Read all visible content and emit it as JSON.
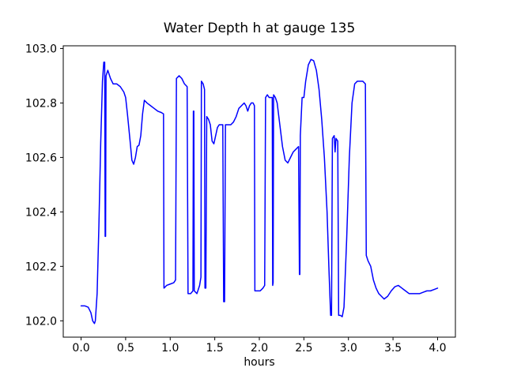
{
  "title": "Water Depth h at gauge 135",
  "chart_data": {
    "type": "line",
    "title": "Water Depth h at gauge 135",
    "xlabel": "hours",
    "ylabel": "",
    "legend": null,
    "grid": false,
    "series_name": "Water depth h",
    "series_color": "#0000ff",
    "axis_color": "#000000",
    "xlim": [
      -0.2,
      4.2
    ],
    "ylim": [
      101.94,
      103.01
    ],
    "xticks": {
      "values": [
        0.0,
        0.5,
        1.0,
        1.5,
        2.0,
        2.5,
        3.0,
        3.5,
        4.0
      ],
      "labels": [
        "0.0",
        "0.5",
        "1.0",
        "1.5",
        "2.0",
        "2.5",
        "3.0",
        "3.5",
        "4.0"
      ]
    },
    "yticks": {
      "values": [
        102.0,
        102.2,
        102.4,
        102.6,
        102.8,
        103.0
      ],
      "labels": [
        "102.0",
        "102.2",
        "102.4",
        "102.6",
        "102.8",
        "103.0"
      ]
    },
    "points": [
      [
        0.0,
        102.055
      ],
      [
        0.04,
        102.055
      ],
      [
        0.08,
        102.05
      ],
      [
        0.11,
        102.03
      ],
      [
        0.13,
        102.0
      ],
      [
        0.15,
        101.99
      ],
      [
        0.16,
        102.0
      ],
      [
        0.18,
        102.1
      ],
      [
        0.2,
        102.35
      ],
      [
        0.22,
        102.65
      ],
      [
        0.24,
        102.88
      ],
      [
        0.255,
        102.95
      ],
      [
        0.265,
        102.95
      ],
      [
        0.27,
        102.31
      ],
      [
        0.275,
        102.31
      ],
      [
        0.28,
        102.9
      ],
      [
        0.3,
        102.92
      ],
      [
        0.33,
        102.89
      ],
      [
        0.36,
        102.87
      ],
      [
        0.4,
        102.87
      ],
      [
        0.44,
        102.86
      ],
      [
        0.48,
        102.84
      ],
      [
        0.5,
        102.82
      ],
      [
        0.52,
        102.76
      ],
      [
        0.55,
        102.66
      ],
      [
        0.57,
        102.59
      ],
      [
        0.59,
        102.575
      ],
      [
        0.61,
        102.6
      ],
      [
        0.63,
        102.64
      ],
      [
        0.65,
        102.645
      ],
      [
        0.67,
        102.68
      ],
      [
        0.69,
        102.76
      ],
      [
        0.71,
        102.81
      ],
      [
        0.74,
        102.8
      ],
      [
        0.78,
        102.79
      ],
      [
        0.82,
        102.78
      ],
      [
        0.86,
        102.77
      ],
      [
        0.9,
        102.765
      ],
      [
        0.925,
        102.76
      ],
      [
        0.93,
        102.12
      ],
      [
        0.96,
        102.13
      ],
      [
        1.0,
        102.135
      ],
      [
        1.04,
        102.14
      ],
      [
        1.06,
        102.15
      ],
      [
        1.07,
        102.89
      ],
      [
        1.1,
        102.9
      ],
      [
        1.13,
        102.89
      ],
      [
        1.16,
        102.87
      ],
      [
        1.19,
        102.86
      ],
      [
        1.2,
        102.1
      ],
      [
        1.23,
        102.1
      ],
      [
        1.255,
        102.11
      ],
      [
        1.26,
        102.77
      ],
      [
        1.265,
        102.77
      ],
      [
        1.27,
        102.11
      ],
      [
        1.3,
        102.1
      ],
      [
        1.33,
        102.13
      ],
      [
        1.345,
        102.16
      ],
      [
        1.35,
        102.88
      ],
      [
        1.37,
        102.87
      ],
      [
        1.385,
        102.85
      ],
      [
        1.39,
        102.12
      ],
      [
        1.4,
        102.12
      ],
      [
        1.41,
        102.75
      ],
      [
        1.43,
        102.74
      ],
      [
        1.45,
        102.72
      ],
      [
        1.47,
        102.66
      ],
      [
        1.49,
        102.65
      ],
      [
        1.51,
        102.68
      ],
      [
        1.53,
        102.71
      ],
      [
        1.55,
        102.72
      ],
      [
        1.57,
        102.72
      ],
      [
        1.59,
        102.72
      ],
      [
        1.6,
        102.07
      ],
      [
        1.61,
        102.07
      ],
      [
        1.62,
        102.72
      ],
      [
        1.65,
        102.72
      ],
      [
        1.68,
        102.72
      ],
      [
        1.71,
        102.73
      ],
      [
        1.74,
        102.75
      ],
      [
        1.77,
        102.78
      ],
      [
        1.8,
        102.79
      ],
      [
        1.83,
        102.8
      ],
      [
        1.85,
        102.79
      ],
      [
        1.87,
        102.77
      ],
      [
        1.89,
        102.79
      ],
      [
        1.91,
        102.8
      ],
      [
        1.93,
        102.8
      ],
      [
        1.945,
        102.79
      ],
      [
        1.95,
        102.11
      ],
      [
        1.98,
        102.11
      ],
      [
        2.01,
        102.11
      ],
      [
        2.04,
        102.12
      ],
      [
        2.06,
        102.13
      ],
      [
        2.07,
        102.82
      ],
      [
        2.09,
        102.83
      ],
      [
        2.11,
        102.82
      ],
      [
        2.13,
        102.82
      ],
      [
        2.145,
        102.82
      ],
      [
        2.15,
        102.13
      ],
      [
        2.155,
        102.14
      ],
      [
        2.16,
        102.83
      ],
      [
        2.18,
        102.82
      ],
      [
        2.2,
        102.8
      ],
      [
        2.23,
        102.72
      ],
      [
        2.26,
        102.64
      ],
      [
        2.29,
        102.59
      ],
      [
        2.32,
        102.58
      ],
      [
        2.35,
        102.6
      ],
      [
        2.38,
        102.62
      ],
      [
        2.41,
        102.63
      ],
      [
        2.44,
        102.64
      ],
      [
        2.45,
        102.17
      ],
      [
        2.455,
        102.17
      ],
      [
        2.46,
        102.68
      ],
      [
        2.48,
        102.82
      ],
      [
        2.5,
        102.82
      ],
      [
        2.52,
        102.88
      ],
      [
        2.55,
        102.94
      ],
      [
        2.58,
        102.96
      ],
      [
        2.61,
        102.955
      ],
      [
        2.64,
        102.92
      ],
      [
        2.67,
        102.85
      ],
      [
        2.7,
        102.74
      ],
      [
        2.73,
        102.6
      ],
      [
        2.76,
        102.4
      ],
      [
        2.78,
        102.2
      ],
      [
        2.8,
        102.02
      ],
      [
        2.81,
        102.02
      ],
      [
        2.82,
        102.67
      ],
      [
        2.84,
        102.68
      ],
      [
        2.85,
        102.62
      ],
      [
        2.86,
        102.67
      ],
      [
        2.88,
        102.66
      ],
      [
        2.89,
        102.02
      ],
      [
        2.91,
        102.02
      ],
      [
        2.93,
        102.015
      ],
      [
        2.95,
        102.05
      ],
      [
        2.98,
        102.3
      ],
      [
        3.01,
        102.6
      ],
      [
        3.04,
        102.8
      ],
      [
        3.07,
        102.87
      ],
      [
        3.1,
        102.88
      ],
      [
        3.13,
        102.88
      ],
      [
        3.16,
        102.88
      ],
      [
        3.19,
        102.87
      ],
      [
        3.2,
        102.24
      ],
      [
        3.22,
        102.22
      ],
      [
        3.25,
        102.2
      ],
      [
        3.28,
        102.15
      ],
      [
        3.31,
        102.12
      ],
      [
        3.34,
        102.1
      ],
      [
        3.37,
        102.09
      ],
      [
        3.4,
        102.08
      ],
      [
        3.44,
        102.09
      ],
      [
        3.48,
        102.11
      ],
      [
        3.52,
        102.125
      ],
      [
        3.56,
        102.13
      ],
      [
        3.6,
        102.12
      ],
      [
        3.64,
        102.11
      ],
      [
        3.68,
        102.1
      ],
      [
        3.72,
        102.1
      ],
      [
        3.76,
        102.1
      ],
      [
        3.8,
        102.1
      ],
      [
        3.84,
        102.105
      ],
      [
        3.88,
        102.11
      ],
      [
        3.92,
        102.11
      ],
      [
        3.96,
        102.115
      ],
      [
        4.0,
        102.12
      ]
    ]
  }
}
